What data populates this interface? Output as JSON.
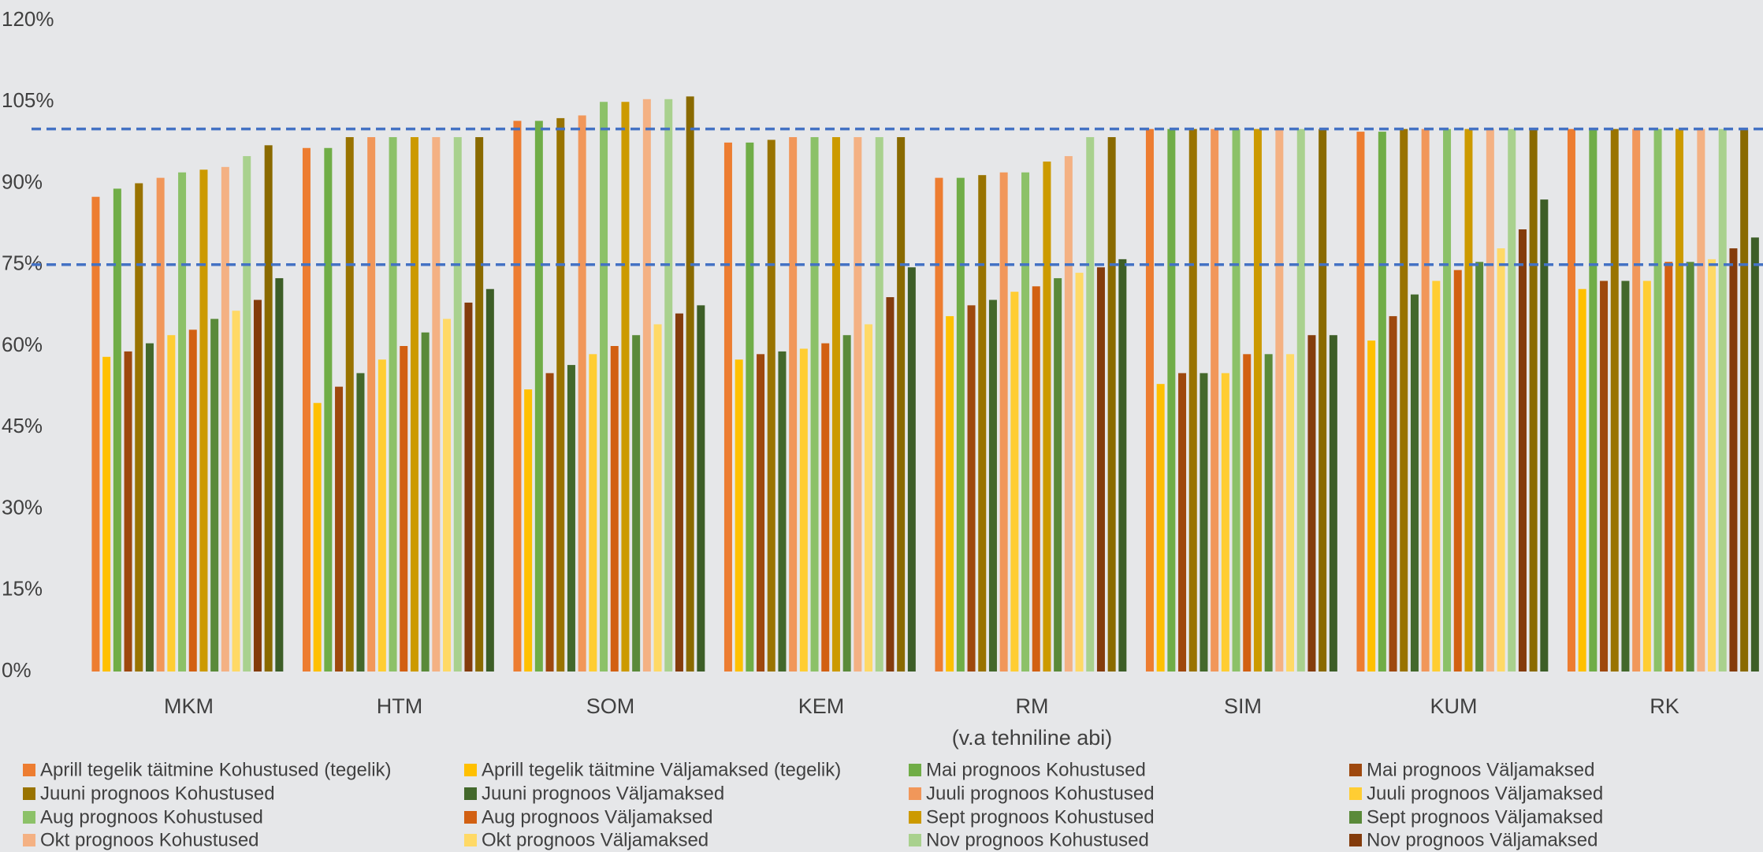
{
  "chart_data": {
    "type": "bar",
    "categories": [
      "MKM",
      "HTM",
      "SOM",
      "KEM",
      "RM\n(v.a tehniline abi)",
      "SIM",
      "KUM",
      "RK"
    ],
    "ylim": [
      0,
      120
    ],
    "yticks": [
      {
        "value": 0,
        "label": "0%"
      },
      {
        "value": 15,
        "label": "15%"
      },
      {
        "value": 30,
        "label": "30%"
      },
      {
        "value": 45,
        "label": "45%"
      },
      {
        "value": 60,
        "label": "60%"
      },
      {
        "value": 75,
        "label": "75%"
      },
      {
        "value": 90,
        "label": "90%"
      },
      {
        "value": 105,
        "label": "105%"
      },
      {
        "value": 120,
        "label": "120%"
      }
    ],
    "grid": false,
    "reference_lines": [
      100,
      75
    ],
    "reference_color": "#4472c4",
    "series": [
      {
        "name": "Aprill tegelik täitmine Kohustused (tegelik)",
        "color": "#ed7d31",
        "values": [
          87.5,
          96.5,
          101.5,
          97.5,
          91,
          100,
          99.5,
          100
        ]
      },
      {
        "name": "Aprill tegelik täitmine Väljamaksed (tegelik)",
        "color": "#ffc000",
        "values": [
          58,
          49.5,
          52,
          57.5,
          65.5,
          53,
          61,
          70.5
        ]
      },
      {
        "name": "Mai prognoos Kohustused",
        "color": "#70ad47",
        "values": [
          89,
          96.5,
          101.5,
          97.5,
          91,
          100,
          99.5,
          100
        ]
      },
      {
        "name": "Mai prognoos Väljamaksed",
        "color": "#9e480e",
        "values": [
          59,
          52.5,
          55,
          58.5,
          67.5,
          55,
          65.5,
          72
        ]
      },
      {
        "name": "Juuni prognoos Kohustused",
        "color": "#997300",
        "values": [
          90,
          98.5,
          102,
          98,
          91.5,
          100,
          100,
          100
        ]
      },
      {
        "name": "Juuni prognoos Väljamaksed",
        "color": "#43682b",
        "values": [
          60.5,
          55,
          56.5,
          59,
          68.5,
          55,
          69.5,
          72
        ]
      },
      {
        "name": "Juuli prognoos Kohustused",
        "color": "#f1975a",
        "values": [
          91,
          98.5,
          102.5,
          98.5,
          92,
          100,
          100,
          100
        ]
      },
      {
        "name": "Juuli prognoos Väljamaksed",
        "color": "#ffcd33",
        "values": [
          62,
          57.5,
          58.5,
          59.5,
          70,
          55,
          72,
          72
        ]
      },
      {
        "name": "Aug prognoos Kohustused",
        "color": "#8cc168",
        "values": [
          92,
          98.5,
          105,
          98.5,
          92,
          100,
          100,
          100
        ]
      },
      {
        "name": "Aug prognoos Väljamaksed",
        "color": "#d26012",
        "values": [
          63,
          60,
          60,
          60.5,
          71,
          58.5,
          74,
          75.5
        ]
      },
      {
        "name": "Sept prognoos Kohustused",
        "color": "#cc9a00",
        "values": [
          92.5,
          98.5,
          105,
          98.5,
          94,
          100,
          100,
          100
        ]
      },
      {
        "name": "Sept prognoos Väljamaksed",
        "color": "#5a8a39",
        "values": [
          65,
          62.5,
          62,
          62,
          72.5,
          58.5,
          75.5,
          75.5
        ]
      },
      {
        "name": "Okt prognoos Kohustused",
        "color": "#f4b183",
        "values": [
          93,
          98.5,
          105.5,
          98.5,
          95,
          100,
          100,
          100
        ]
      },
      {
        "name": "Okt prognoos Väljamaksed",
        "color": "#ffd966",
        "values": [
          66.5,
          65,
          64,
          64,
          73.5,
          58.5,
          78,
          76
        ]
      },
      {
        "name": "Nov prognoos Kohustused",
        "color": "#a9d18e",
        "values": [
          95,
          98.5,
          105.5,
          98.5,
          98.5,
          100,
          100,
          100
        ]
      },
      {
        "name": "Nov prognoos Väljamaksed",
        "color": "#843c0c",
        "values": [
          68.5,
          68,
          66,
          69,
          74.5,
          62,
          81.5,
          78
        ]
      },
      {
        "color": "#8a6a00",
        "values": [
          97,
          98.5,
          106,
          98.5,
          98.5,
          100,
          100,
          100
        ]
      },
      {
        "color": "#3d5e27",
        "values": [
          72.5,
          70.5,
          67.5,
          74.5,
          76,
          62,
          87,
          80
        ]
      }
    ]
  }
}
